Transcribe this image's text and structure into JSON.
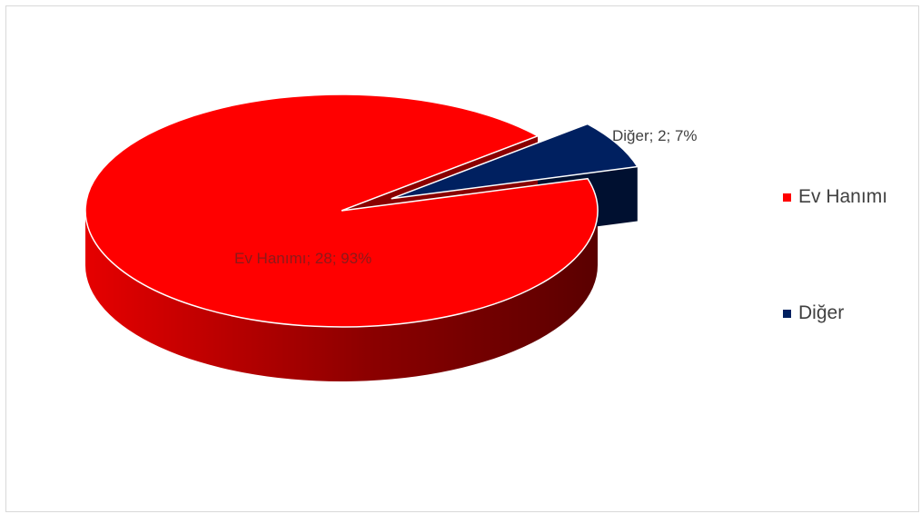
{
  "chart_data": {
    "type": "pie",
    "style": "3d-exploded",
    "slices": [
      {
        "name": "Ev Hanımı",
        "value": 28,
        "percent": 93,
        "label": "Ev Hanımı; 28; 93%",
        "color": "#ff0000"
      },
      {
        "name": "Diğer",
        "value": 2,
        "percent": 7,
        "label": "Diğer; 2; 7%",
        "color": "#002060"
      }
    ],
    "legend": {
      "placement": "right",
      "entries": [
        "Ev Hanımı",
        "Diğer"
      ]
    }
  }
}
